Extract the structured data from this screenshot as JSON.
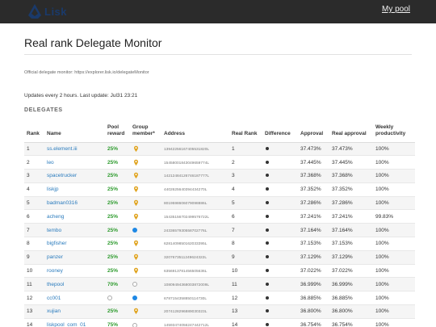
{
  "header": {
    "logo_text": "Lisk",
    "my_pool_label": "My pool"
  },
  "page": {
    "title": "Real rank Delegate Monitor",
    "official_text": "Official delegate monitor: https://explorer.lisk.io/delegateMonitor",
    "updates_text": "Updates every 2 hours. Last update: Jul31 23:21",
    "section_title": "DELEGATES"
  },
  "table": {
    "headers": {
      "rank": "Rank",
      "name": "Name",
      "pool_reward": "Pool reward",
      "group_member": "Group member*",
      "address": "Address",
      "real_rank": "Real Rank",
      "difference": "Difference",
      "approval": "Approval",
      "real_approval": "Real approval",
      "weekly_productivity": "Weekly productivity"
    },
    "rows": [
      {
        "rank": "1",
        "name": "ss.element.iii",
        "reward": "25%",
        "group": "pin",
        "address": "13942256167405531820L",
        "real_rank": "1",
        "approval": "37.473%",
        "real_approval": "37.473%",
        "productivity": "100%"
      },
      {
        "rank": "2",
        "name": "leo",
        "reward": "25%",
        "group": "pin",
        "address": "15458001843049659774L",
        "real_rank": "2",
        "approval": "37.445%",
        "real_approval": "37.445%",
        "productivity": "100%"
      },
      {
        "rank": "3",
        "name": "spacetrucker",
        "reward": "25%",
        "group": "pin",
        "address": "14212484126746187777L",
        "real_rank": "3",
        "approval": "37.368%",
        "real_approval": "37.368%",
        "productivity": "100%"
      },
      {
        "rank": "4",
        "name": "liskjp",
        "reward": "25%",
        "group": "pin",
        "address": "4402625640394434270L",
        "real_rank": "4",
        "approval": "37.352%",
        "real_approval": "37.352%",
        "productivity": "100%"
      },
      {
        "rank": "5",
        "name": "badman0316",
        "reward": "25%",
        "group": "pin",
        "address": "8019598606079098886L",
        "real_rank": "5",
        "approval": "37.286%",
        "real_approval": "37.286%",
        "productivity": "100%"
      },
      {
        "rank": "6",
        "name": "acheng",
        "reward": "25%",
        "group": "pin",
        "address": "15435156702499576722L",
        "real_rank": "6",
        "approval": "37.241%",
        "real_approval": "37.241%",
        "productivity": "99.83%"
      },
      {
        "rank": "7",
        "name": "tembo",
        "reward": "25%",
        "group": "blue",
        "address": "2433657930558702776L",
        "real_rank": "7",
        "approval": "37.164%",
        "real_approval": "37.164%",
        "productivity": "100%"
      },
      {
        "rank": "8",
        "name": "bigfisher",
        "reward": "25%",
        "group": "pin",
        "address": "6281409850162033395L",
        "real_rank": "8",
        "approval": "37.153%",
        "real_approval": "37.153%",
        "productivity": "100%"
      },
      {
        "rank": "9",
        "name": "panzer",
        "reward": "25%",
        "group": "pin",
        "address": "3207673511249624322L",
        "real_rank": "9",
        "approval": "37.129%",
        "real_approval": "37.129%",
        "productivity": "100%"
      },
      {
        "rank": "10",
        "name": "rooney",
        "reward": "25%",
        "group": "pin",
        "address": "6356913781456505636L",
        "real_rank": "10",
        "approval": "37.022%",
        "real_approval": "37.022%",
        "productivity": "100%"
      },
      {
        "rank": "11",
        "name": "thepool",
        "reward": "70%",
        "group": "empty",
        "address": "10809494368003872009L",
        "real_rank": "11",
        "approval": "36.999%",
        "real_approval": "36.999%",
        "productivity": "100%"
      },
      {
        "rank": "12",
        "name": "cc001",
        "reward": "",
        "group": "blue",
        "address": "6787154358850114730L",
        "real_rank": "12",
        "approval": "36.885%",
        "real_approval": "36.885%",
        "productivity": "100%"
      },
      {
        "rank": "13",
        "name": "xujian",
        "reward": "25%",
        "group": "pin",
        "address": "2074128296889030323L",
        "real_rank": "13",
        "approval": "36.800%",
        "real_approval": "36.800%",
        "productivity": "100%"
      },
      {
        "rank": "14",
        "name": "liskpool_com_01",
        "reward": "75%",
        "group": "empty",
        "address": "14593474056247442712L",
        "real_rank": "14",
        "approval": "36.754%",
        "real_approval": "36.754%",
        "productivity": "100%"
      }
    ]
  },
  "colors": {
    "topbar": "#2b2b2b",
    "link": "#2a7bbd",
    "reward": "#2e9b2e",
    "pin": "#e0a420",
    "group_blue": "#1e88e5"
  },
  "icons": {
    "logo": "lisk-logo-icon",
    "group_pin": "pin-icon",
    "group_blue": "blue-dot-icon",
    "group_empty": "empty-circle-icon",
    "difference": "dot-icon"
  }
}
